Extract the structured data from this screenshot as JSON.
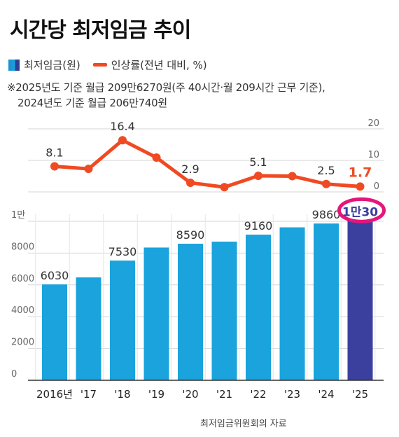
{
  "title": "시간당 최저임금 추이",
  "legend": {
    "bar_label": "최저임금(원)",
    "line_label": "인상률(전년 대비, %)"
  },
  "note": {
    "line1": "※2025년도 기준 월급 209만6270원(주 40시간·월 209시간 근무 기준),",
    "line2": "2024년도 기준 월급 206만740원"
  },
  "source": "최저임금위원회의 자료",
  "colors": {
    "bar": "#1aa3dc",
    "bar_highlight": "#3b3f9e",
    "line": "#f04a23",
    "highlight_mark": "#e5157b"
  },
  "chart_data": {
    "type": "bar",
    "categories": [
      "2016년",
      "'17",
      "'18",
      "'19",
      "'20",
      "'21",
      "'22",
      "'23",
      "'24",
      "'25"
    ],
    "series": [
      {
        "name": "최저임금(원)",
        "type": "bar",
        "values": [
          6030,
          6470,
          7530,
          8350,
          8590,
          8720,
          9160,
          9620,
          9860,
          10030
        ],
        "labels": [
          "6030",
          "",
          "7530",
          "",
          "8590",
          "",
          "9160",
          "",
          "9860",
          "1만30"
        ]
      },
      {
        "name": "인상률(전년 대비, %)",
        "type": "line",
        "values": [
          8.1,
          7.3,
          16.4,
          10.9,
          2.9,
          1.5,
          5.1,
          5.0,
          2.5,
          1.7
        ],
        "labels": [
          "8.1",
          "",
          "16.4",
          "",
          "2.9",
          "",
          "5.1",
          "",
          "2.5",
          "1.7"
        ]
      }
    ],
    "y_left": {
      "ticks": [
        "0",
        "2000",
        "4000",
        "6000",
        "8000",
        "1만"
      ],
      "range": [
        0,
        10000
      ]
    },
    "y_right": {
      "ticks": [
        "0",
        "10",
        "20"
      ],
      "range": [
        0,
        20
      ]
    }
  }
}
